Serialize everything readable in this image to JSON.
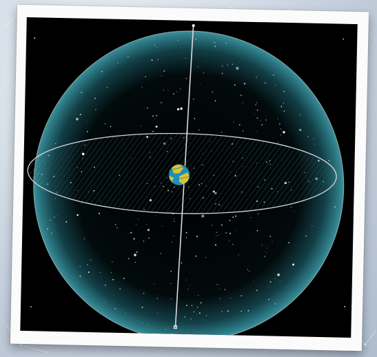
{
  "scene": {
    "colors": {
      "background": "#c9d3df",
      "frame": "#fbfbfb",
      "space": "#000000",
      "sphere_edge": "#2c7a85",
      "sphere_rim_line": "#cfe6ea",
      "axis_line": "#dddddd",
      "equator_line": "#d8d8d8",
      "earth_ocean": "#1e8fb8",
      "earth_land": "#d9c430",
      "star": "#ffffff"
    },
    "icons": [
      "celestial-sphere",
      "polar-axis",
      "celestial-equator-plane",
      "earth-globe",
      "stars"
    ]
  }
}
